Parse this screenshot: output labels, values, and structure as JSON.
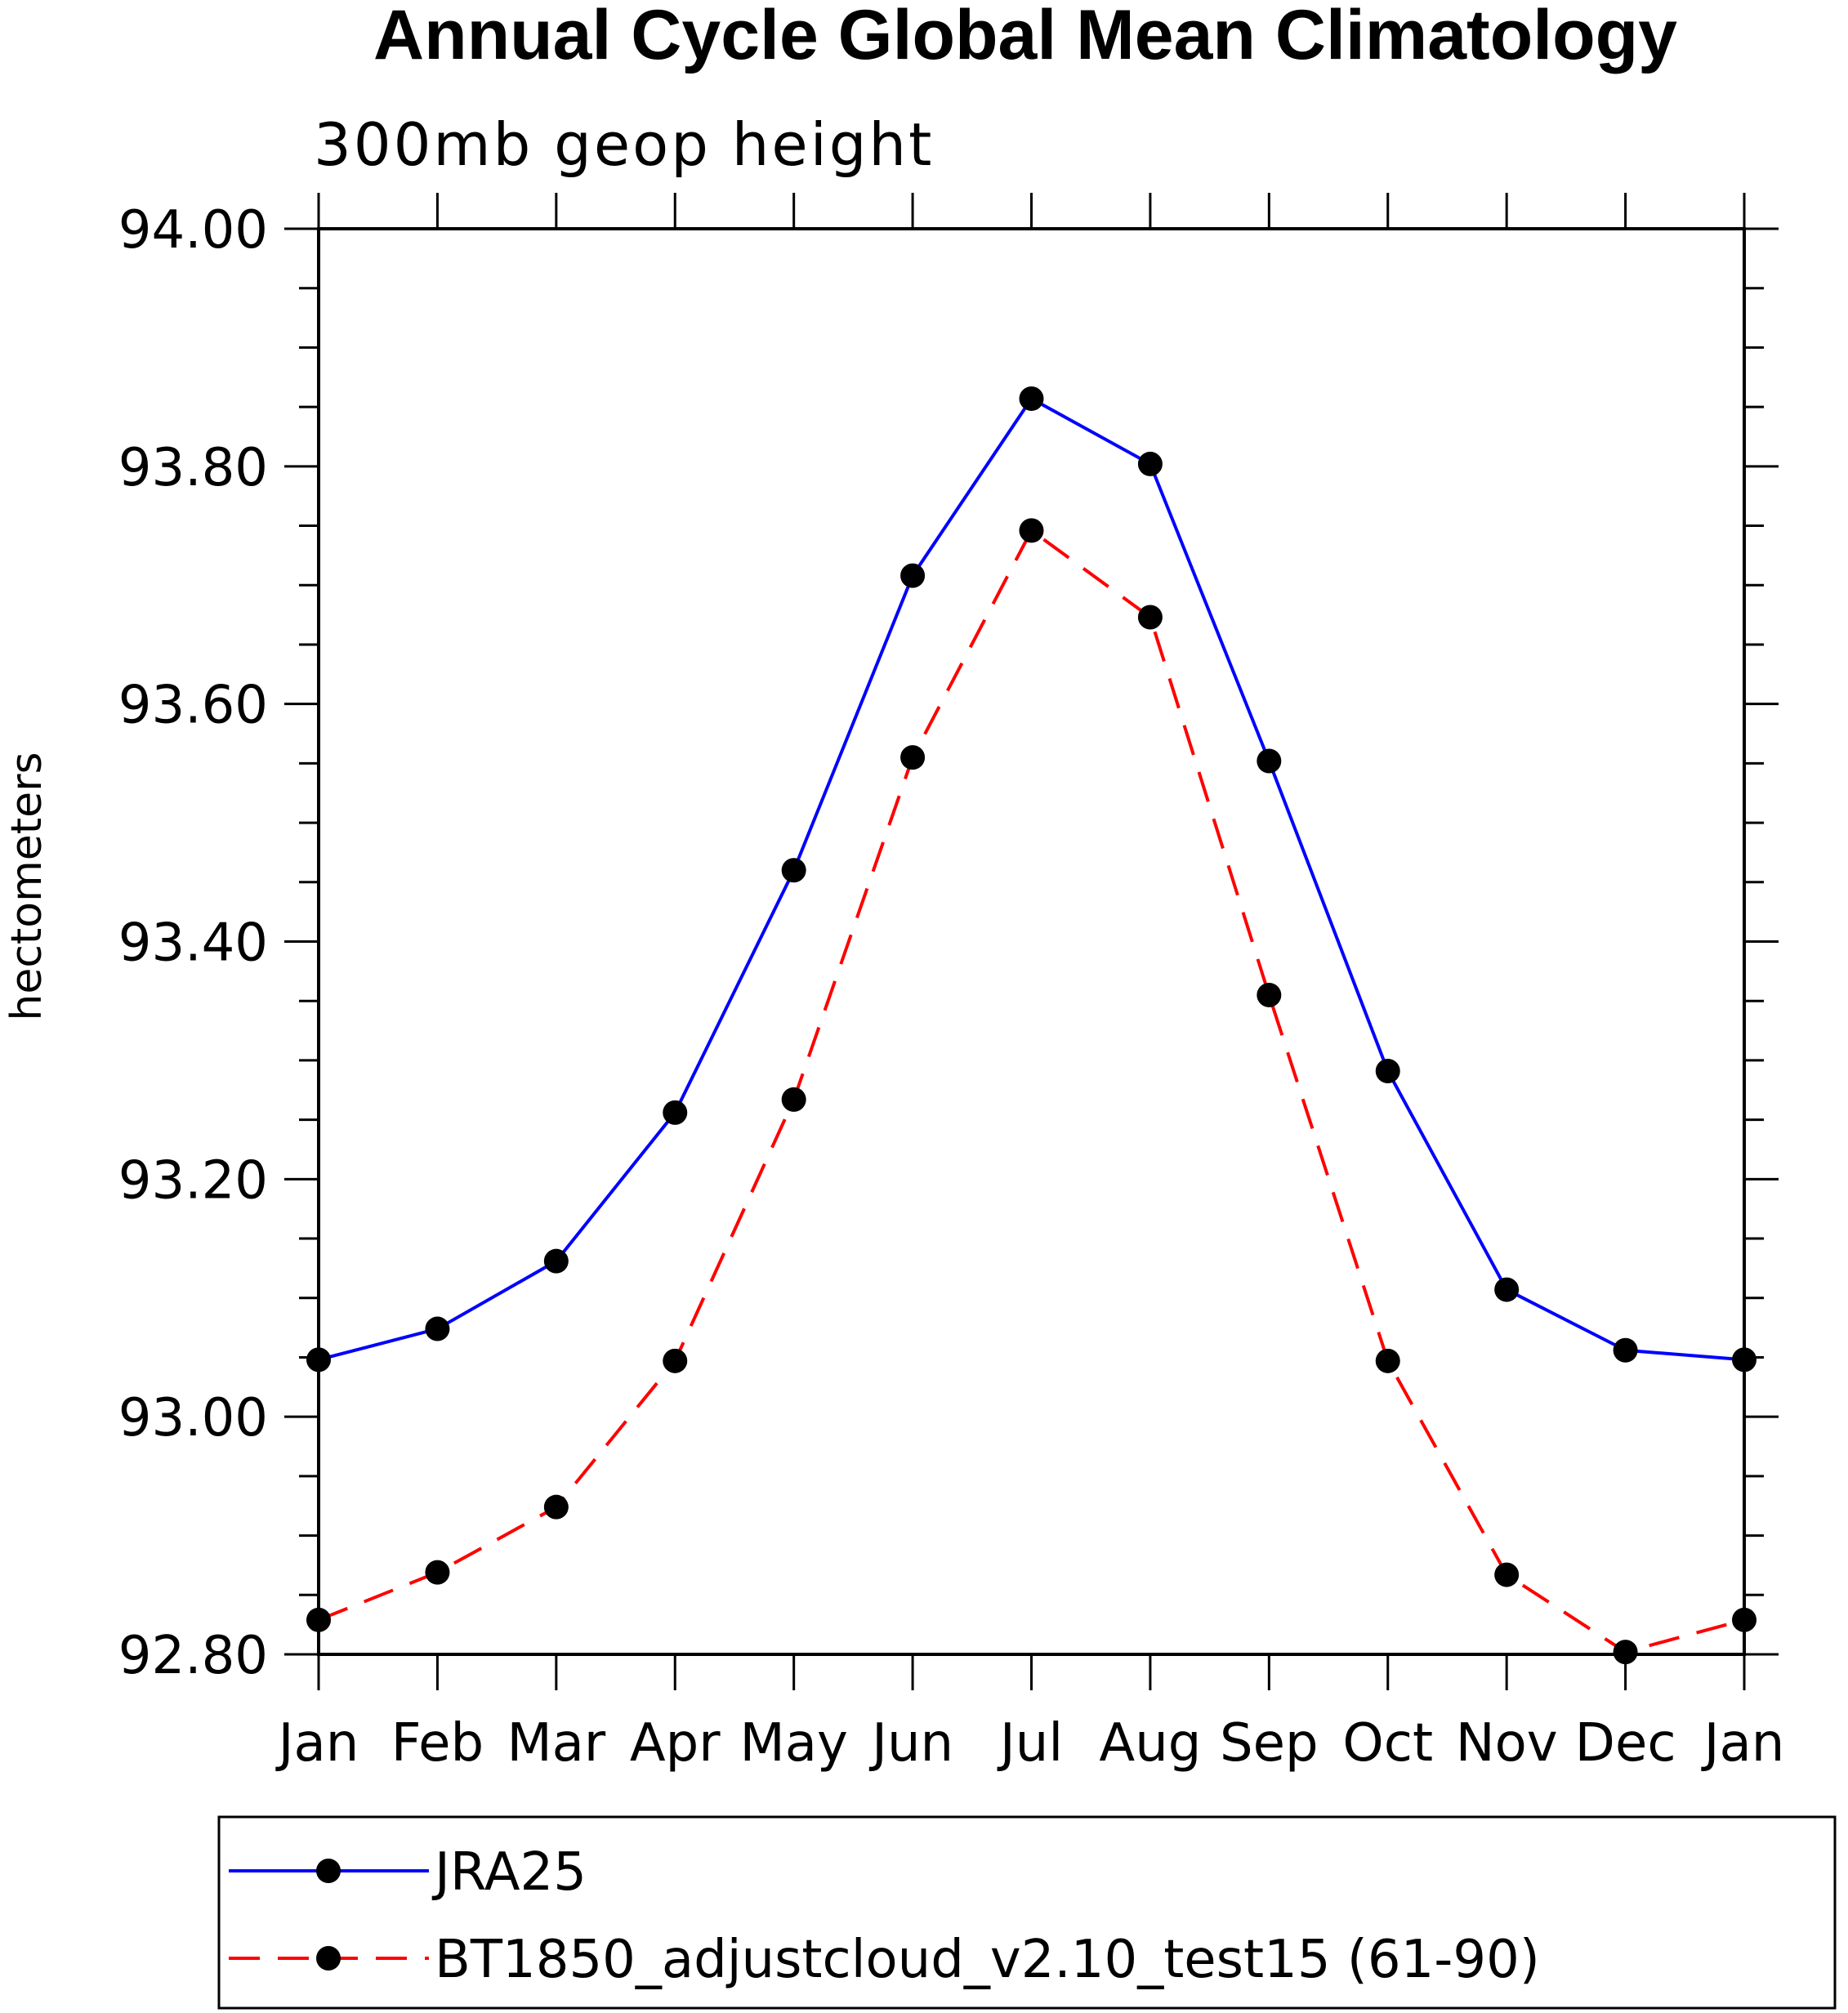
{
  "chart_data": {
    "type": "line",
    "title": "Annual Cycle Global Mean Climatology",
    "subtitle": "300mb geop height",
    "xlabel": "",
    "ylabel": "hectometers",
    "categories": [
      "Jan",
      "Feb",
      "Mar",
      "Apr",
      "May",
      "Jun",
      "Jul",
      "Aug",
      "Sep",
      "Oct",
      "Nov",
      "Dec",
      "Jan"
    ],
    "ylim": [
      92.8,
      94.0
    ],
    "yticks": [
      "92.80",
      "93.00",
      "93.20",
      "93.40",
      "93.60",
      "93.80",
      "94.00"
    ],
    "series": [
      {
        "name": "JRA25",
        "color": "#0000ff",
        "dash": "solid",
        "values": [
          93.048,
          93.074,
          93.131,
          93.256,
          93.46,
          93.708,
          93.857,
          93.802,
          93.552,
          93.291,
          93.107,
          93.056,
          93.048
        ]
      },
      {
        "name": "BT1850_adjustcloud_v2.10_test15 (61-90)",
        "color": "#ff0000",
        "dash": "dashed",
        "values": [
          92.829,
          92.869,
          92.924,
          93.047,
          93.267,
          93.555,
          93.746,
          93.673,
          93.355,
          93.047,
          92.867,
          92.802,
          92.829
        ]
      }
    ],
    "legend_position": "bottom"
  }
}
